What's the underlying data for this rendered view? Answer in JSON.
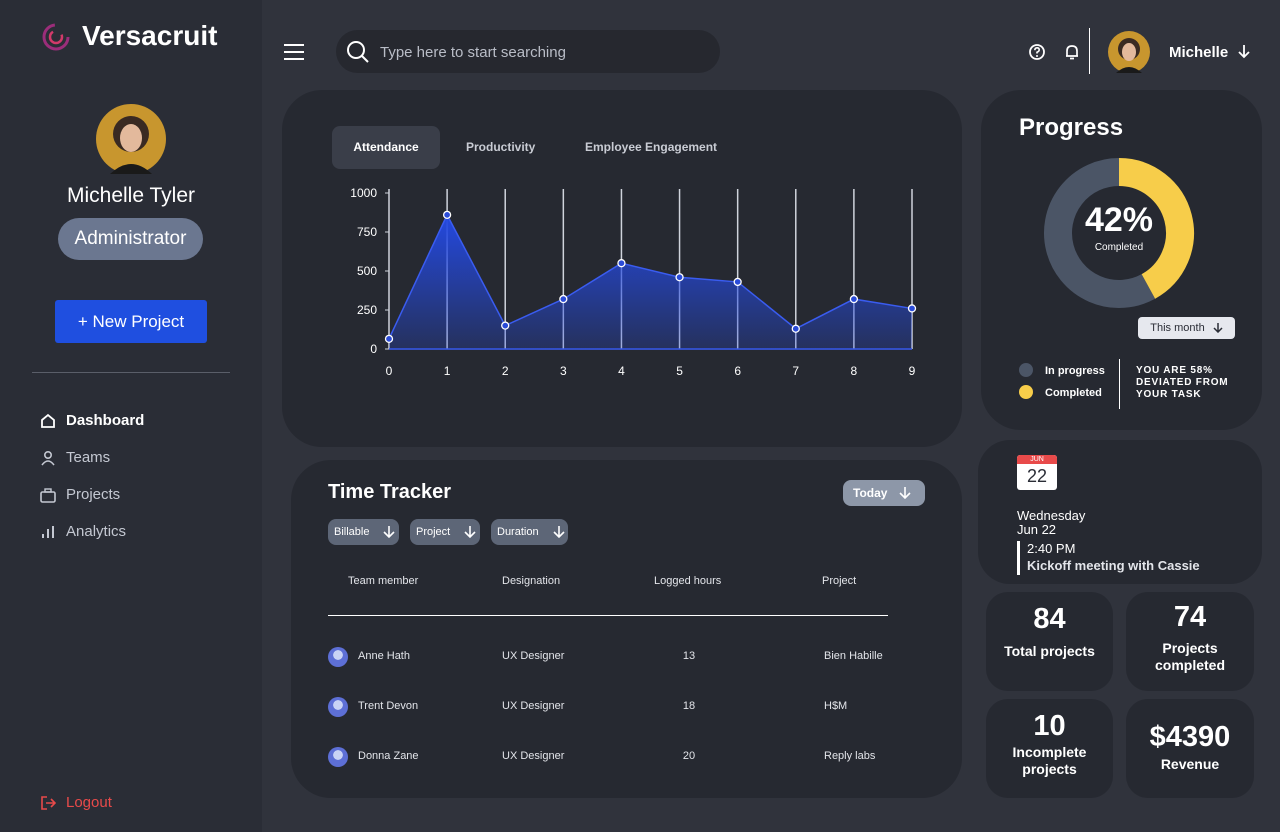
{
  "brand": "Versacruit",
  "search_placeholder": "Type here to start searching",
  "user_name": "Michelle",
  "profile": {
    "name": "Michelle Tyler",
    "role": "Administrator"
  },
  "new_project": "+ New Project",
  "nav": [
    "Dashboard",
    "Teams",
    "Projects",
    "Analytics"
  ],
  "logout": "Logout",
  "tabs": [
    "Attendance",
    "Productivity",
    "Employee Engagement"
  ],
  "chart_data": [
    {
      "type": "area",
      "color": "#3a5cf0",
      "x": [
        0,
        1,
        2,
        3,
        4,
        5,
        6,
        7,
        8,
        9
      ],
      "values": [
        65,
        860,
        150,
        320,
        550,
        460,
        430,
        130,
        320,
        260
      ],
      "xlim": [
        0,
        9
      ],
      "xticks": [
        0,
        1,
        2,
        3,
        4,
        5,
        6,
        7,
        8,
        9
      ],
      "ylim": [
        0,
        1000
      ],
      "yticks": [
        0,
        250,
        500,
        750,
        1000
      ],
      "grid": true
    },
    {
      "type": "donut",
      "title": "Progress",
      "categories": [
        "In progress",
        "Completed"
      ],
      "values": [
        58,
        42
      ],
      "value_labels": [
        null,
        "42%"
      ],
      "colors": [
        "#4b5566",
        "#f7cd4a"
      ],
      "center_label": "Completed",
      "period": "This month",
      "note": "YOU ARE 58% DEVIATED FROM YOUR TASK"
    }
  ],
  "time_tracker": {
    "title": "Time Tracker",
    "period": "Today",
    "filters": [
      "Billable",
      "Project",
      "Duration"
    ],
    "columns": [
      "Team member",
      "Designation",
      "Logged hours",
      "Project"
    ],
    "rows": [
      [
        "Anne Hath",
        "UX Designer",
        13,
        "Bien Habille"
      ],
      [
        "Trent Devon",
        "UX Designer",
        18,
        "H$M"
      ],
      [
        "Donna Zane",
        "UX Designer",
        20,
        "Reply labs"
      ]
    ]
  },
  "calendar": {
    "month": "JUN",
    "day": 22,
    "weekday": "Wednesday",
    "date": "Jun 22",
    "time": "2:40 PM",
    "event": "Kickoff meeting with Cassie"
  },
  "stats": [
    {
      "value": 84,
      "label": "Total projects"
    },
    {
      "value": 74,
      "label": "Projects completed"
    },
    {
      "value": 10,
      "label": "Incomplete projects"
    },
    {
      "value": 4390,
      "value_label": "$4390",
      "label": "Revenue"
    }
  ]
}
